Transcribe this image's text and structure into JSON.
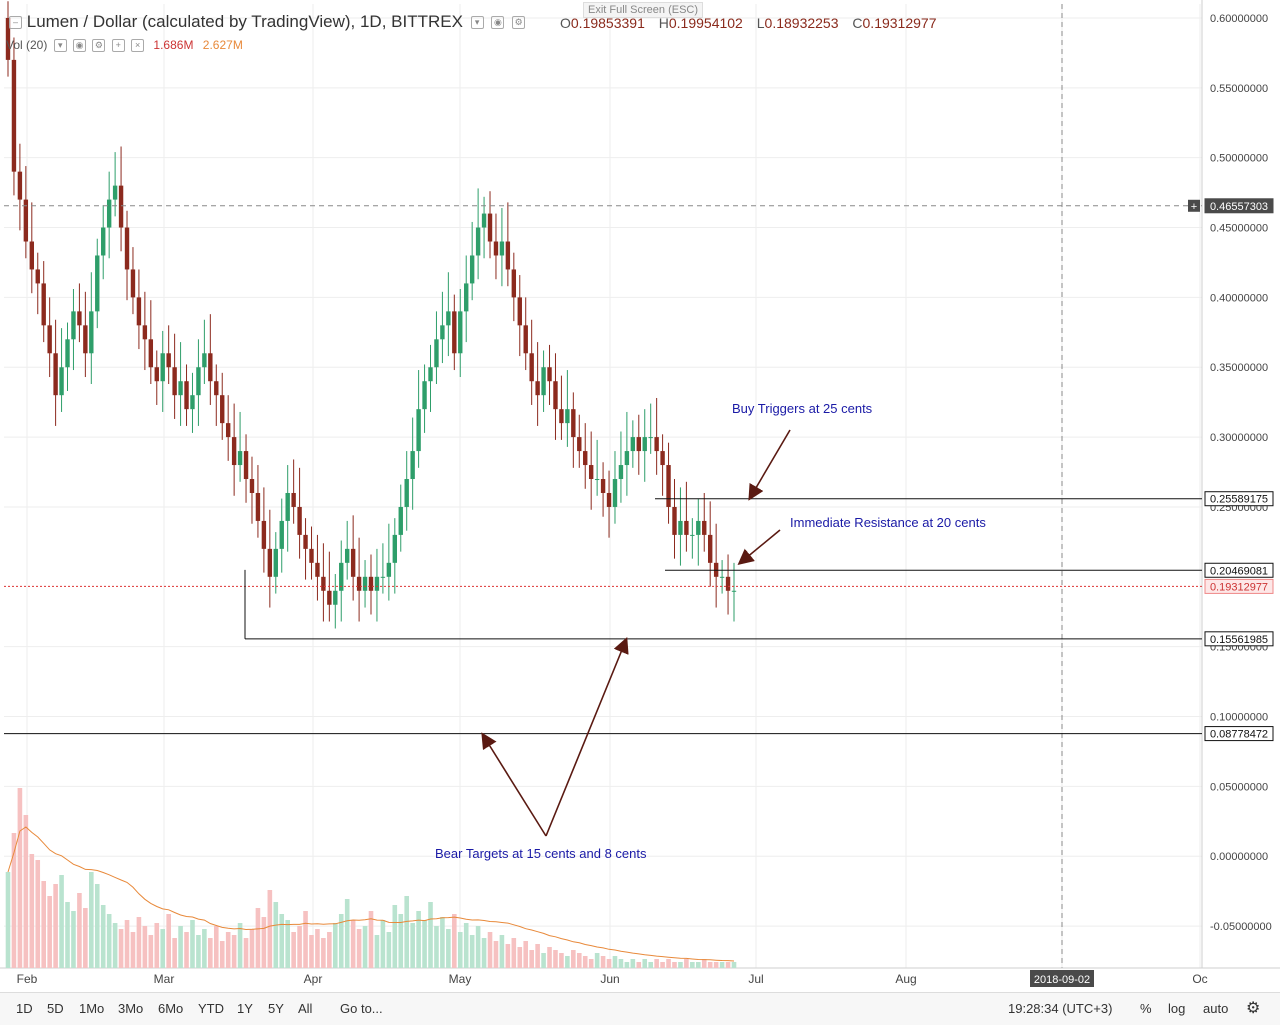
{
  "header": {
    "title": "Lumen / Dollar (calculated by TradingView), 1D, BITTREX",
    "ohlc": [
      {
        "k": "O",
        "v": "0.19853391"
      },
      {
        "k": "H",
        "v": "0.19954102"
      },
      {
        "k": "L",
        "v": "0.18932253"
      },
      {
        "k": "C",
        "v": "0.19312977"
      }
    ],
    "exit_fullscreen": "Exit Full Screen (ESC)",
    "volume_label": "Vol (20)",
    "volume_value": "1.686M",
    "volume_ma": "2.627M"
  },
  "toolbar": {
    "ranges": [
      "1D",
      "5D",
      "1Mo",
      "3Mo",
      "6Mo",
      "YTD",
      "1Y",
      "5Y",
      "All"
    ],
    "goto": "Go to...",
    "time": "19:28:34 (UTC+3)",
    "percent": "%",
    "log": "log",
    "auto": "auto"
  },
  "colors": {
    "up": "#2e9e6a",
    "down": "#8c2a1e",
    "vol_up": "#b9e3cf",
    "vol_down": "#f6c1c1",
    "ma": "#e8893a",
    "note": "#1a1aa6",
    "arrow": "#5a1a12"
  },
  "chart_data": {
    "type": "candlestick",
    "title": "Lumen / Dollar (calculated by TradingView), 1D, BITTREX",
    "x_ticks": [
      "Feb",
      "Mar",
      "Apr",
      "May",
      "Jun",
      "Jul",
      "Aug",
      "2018-09-02",
      "Oc"
    ],
    "y_ticks": [
      "0.60000000",
      "0.55000000",
      "0.50000000",
      "0.45000000",
      "0.40000000",
      "0.35000000",
      "0.30000000",
      "0.25000000",
      "0.15000000",
      "0.10000000",
      "0.05000000",
      "0.00000000",
      "-0.05000000"
    ],
    "ylim": [
      -0.08,
      0.61
    ],
    "price_labels": [
      {
        "value": 0.46557303,
        "text": "0.46557303",
        "style": "dashed"
      },
      {
        "value": 0.25589175,
        "text": "0.25589175",
        "style": "line"
      },
      {
        "value": 0.20469081,
        "text": "0.20469081",
        "style": "line"
      },
      {
        "value": 0.19312977,
        "text": "0.19312977",
        "style": "current"
      },
      {
        "value": 0.15561985,
        "text": "0.15561985",
        "style": "line"
      },
      {
        "value": 0.08778472,
        "text": "0.08778472",
        "style": "line"
      }
    ],
    "annotations": [
      {
        "text": "Buy Triggers at 25 cents"
      },
      {
        "text": "Immediate Resistance at 20 cents"
      },
      {
        "text": "Bear Targets at 15 cents and 8 cents"
      }
    ],
    "closes": [
      0.57,
      0.49,
      0.47,
      0.44,
      0.42,
      0.41,
      0.38,
      0.36,
      0.33,
      0.35,
      0.37,
      0.39,
      0.38,
      0.36,
      0.39,
      0.43,
      0.45,
      0.47,
      0.48,
      0.45,
      0.42,
      0.4,
      0.38,
      0.37,
      0.35,
      0.34,
      0.36,
      0.35,
      0.33,
      0.34,
      0.32,
      0.33,
      0.35,
      0.36,
      0.34,
      0.33,
      0.31,
      0.3,
      0.28,
      0.29,
      0.27,
      0.26,
      0.24,
      0.22,
      0.2,
      0.22,
      0.24,
      0.26,
      0.25,
      0.23,
      0.22,
      0.21,
      0.2,
      0.19,
      0.18,
      0.19,
      0.21,
      0.22,
      0.2,
      0.19,
      0.2,
      0.19,
      0.2,
      0.2,
      0.21,
      0.23,
      0.25,
      0.27,
      0.29,
      0.32,
      0.34,
      0.35,
      0.37,
      0.38,
      0.39,
      0.36,
      0.39,
      0.41,
      0.43,
      0.45,
      0.46,
      0.44,
      0.43,
      0.44,
      0.42,
      0.4,
      0.38,
      0.36,
      0.34,
      0.33,
      0.35,
      0.34,
      0.32,
      0.31,
      0.32,
      0.3,
      0.29,
      0.28,
      0.27,
      0.27,
      0.26,
      0.25,
      0.27,
      0.28,
      0.29,
      0.3,
      0.29,
      0.3,
      0.3,
      0.29,
      0.28,
      0.25,
      0.23,
      0.24,
      0.23,
      0.23,
      0.24,
      0.23,
      0.21,
      0.2,
      0.2,
      0.19,
      0.19
    ],
    "volumes": [
      3.2,
      4.5,
      6.0,
      5.1,
      3.8,
      3.6,
      2.9,
      2.4,
      2.8,
      3.1,
      2.2,
      1.9,
      2.5,
      2.0,
      3.2,
      2.8,
      2.1,
      1.8,
      1.5,
      1.3,
      1.6,
      1.2,
      1.7,
      1.4,
      1.1,
      1.5,
      1.3,
      1.8,
      1.0,
      1.4,
      1.2,
      1.6,
      1.1,
      1.3,
      1.0,
      1.4,
      0.9,
      1.2,
      1.1,
      1.5,
      1.0,
      1.3,
      2.0,
      1.7,
      2.6,
      2.2,
      1.8,
      1.6,
      1.2,
      1.4,
      1.9,
      1.1,
      1.3,
      1.0,
      1.2,
      1.5,
      1.8,
      2.3,
      1.6,
      1.3,
      1.4,
      1.9,
      1.1,
      1.6,
      1.2,
      2.1,
      1.8,
      2.4,
      1.5,
      1.9,
      1.6,
      2.2,
      1.4,
      1.7,
      1.3,
      1.8,
      1.2,
      1.5,
      1.1,
      1.4,
      1.0,
      1.2,
      0.9,
      1.1,
      0.8,
      1.0,
      0.7,
      0.9,
      0.6,
      0.8,
      0.5,
      0.7,
      0.6,
      0.5,
      0.4,
      0.6,
      0.5,
      0.4,
      0.3,
      0.5,
      0.4,
      0.3,
      0.4,
      0.3,
      0.2,
      0.3,
      0.2,
      0.3,
      0.2,
      0.3,
      0.2,
      0.3,
      0.2,
      0.2,
      0.3,
      0.2,
      0.2,
      0.3,
      0.2,
      0.2,
      0.2,
      0.2,
      0.2
    ]
  }
}
